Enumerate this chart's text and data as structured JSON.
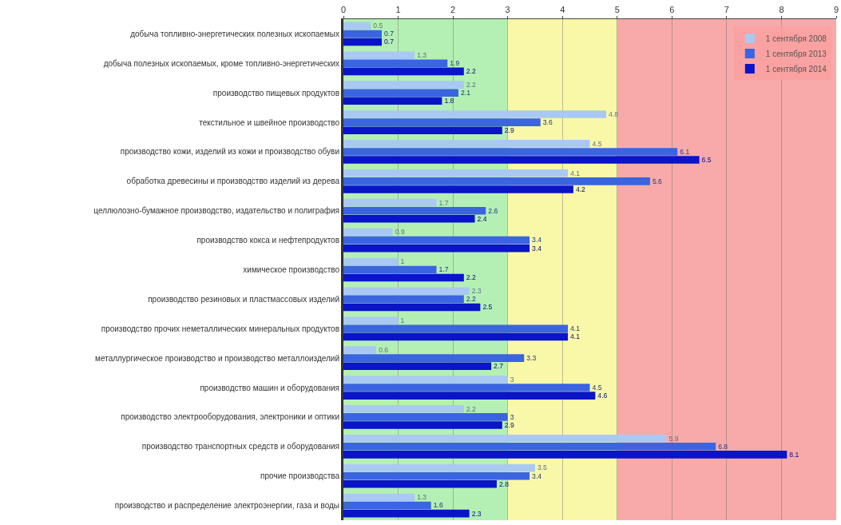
{
  "chart_data": {
    "type": "bar",
    "orientation": "horizontal",
    "data_labels": true,
    "grid": "x",
    "legend": "top right",
    "categories": [
      "добыча топливно-энергетических полезных ископаемых",
      "добыча полезных ископаемых, кроме топливно-энергетических",
      "производство пищевых продуктов",
      "текстильное и швейное производство",
      "производство кожи, изделий из кожи и производство обуви",
      "обработка древесины и производство изделий из дерева",
      "целлюлозно-бумажное производство, издательство и полиграфия",
      "производство кокса и нефтепродуктов",
      "химическое производство",
      "производство резиновых и пластмассовых изделий",
      "производство прочих неметаллических минеральных продуктов",
      "металлургическое производство и производство металлоизделий",
      "производство машин и оборудования",
      "производство электрооборудования, электроники и оптики",
      "производство транспортных средств и оборудования",
      "прочие производства",
      "производство и распределение электроэнергии, газа и воды"
    ],
    "series": [
      {
        "name": "1 сентября 2008",
        "color": "#a9c9f2",
        "values": [
          0.5,
          1.3,
          2.2,
          4.8,
          4.5,
          4.1,
          1.7,
          0.9,
          1.0,
          2.3,
          1.0,
          0.6,
          3.0,
          2.2,
          5.9,
          3.5,
          1.3
        ]
      },
      {
        "name": "1 сентября 2013",
        "color": "#3a64e0",
        "values": [
          0.7,
          1.9,
          2.1,
          3.6,
          6.1,
          5.6,
          2.6,
          3.4,
          1.7,
          2.2,
          4.1,
          3.3,
          4.5,
          3.0,
          6.8,
          3.4,
          1.6
        ]
      },
      {
        "name": "1 сентября 2014",
        "color": "#0a14c8",
        "values": [
          0.7,
          2.2,
          1.8,
          2.9,
          6.5,
          4.2,
          2.4,
          3.4,
          2.2,
          2.5,
          4.1,
          2.7,
          4.6,
          2.9,
          8.1,
          2.8,
          2.3
        ]
      }
    ],
    "xlim": [
      0,
      9
    ],
    "xticks": [
      0,
      1,
      2,
      3,
      4,
      5,
      6,
      7,
      8,
      9
    ],
    "bands": [
      {
        "axis": "x",
        "from": 0,
        "to": 3,
        "color": "#b4f0b4"
      },
      {
        "axis": "x",
        "from": 3,
        "to": 5,
        "color": "#f8f8a8"
      },
      {
        "axis": "x",
        "from": 5,
        "to": 9,
        "color": "#f8aaaa"
      }
    ]
  }
}
